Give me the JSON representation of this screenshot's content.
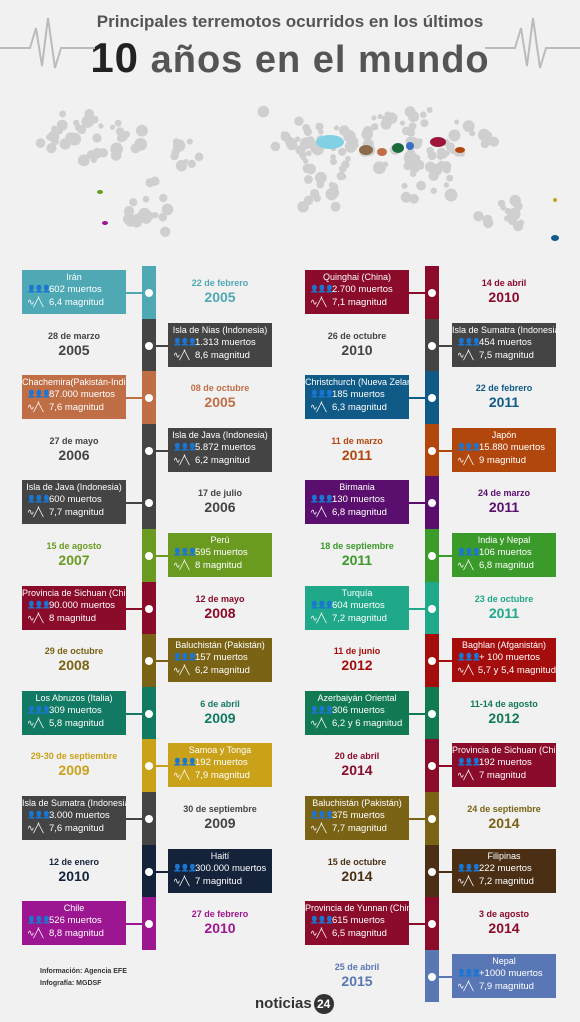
{
  "header": {
    "line1": "Principales terremotos ocurridos en los últimos",
    "num": "10",
    "line2": "años en el mundo"
  },
  "entries_left": [
    {
      "place": "Irán",
      "deaths": "602 muertos",
      "mag": "6,4 magnitud",
      "day": "22 de febrero",
      "year": "2005",
      "color": "#4fa9b5"
    },
    {
      "place": "Isla de Nias (Indonesia)",
      "deaths": "1.313 muertos",
      "mag": "8,6 magnitud",
      "day": "28 de marzo",
      "year": "2005",
      "color": "#444444"
    },
    {
      "place": "Chachemira(Pakistán-India)",
      "deaths": "87.000 muertos",
      "mag": "7,6 magnitud",
      "day": "08 de octubre",
      "year": "2005",
      "color": "#c06e46"
    },
    {
      "place": "Isla de Java (Indonesia)",
      "deaths": "5.872 muertos",
      "mag": "6,2 magnitud",
      "day": "27 de mayo",
      "year": "2006",
      "color": "#444444"
    },
    {
      "place": "Isla de Java (Indonesia)",
      "deaths": "600 muertos",
      "mag": "7,7 magnitud",
      "day": "17 de julio",
      "year": "2006",
      "color": "#444444"
    },
    {
      "place": "Perú",
      "deaths": "595 muertos",
      "mag": "8 magnitud",
      "day": "15 de agosto",
      "year": "2007",
      "color": "#6a9a1f"
    },
    {
      "place": "Provincia de Sichuan (China)",
      "deaths": "90.000 muertos",
      "mag": "8 magnitud",
      "day": "12 de mayo",
      "year": "2008",
      "color": "#8a0b2a"
    },
    {
      "place": "Baluchistán (Pakistán)",
      "deaths": "157 muertos",
      "mag": "6,2 magnitud",
      "day": "29 de octubre",
      "year": "2008",
      "color": "#7a6314"
    },
    {
      "place": "Los Abruzos (Italia)",
      "deaths": "309 muertos",
      "mag": "5,8 magnitud",
      "day": "6 de abril",
      "year": "2009",
      "color": "#127a63"
    },
    {
      "place": "Samoa y Tonga",
      "deaths": "192 muertos",
      "mag": "7,9 magnitud",
      "day": "29-30 de septiembre",
      "year": "2009",
      "color": "#c9a21a"
    },
    {
      "place": "Isla de Sumatra (Indonesia)",
      "deaths": "3.000 muertos",
      "mag": "7,6 magnitud",
      "day": "30 de septiembre",
      "year": "2009",
      "color": "#444444"
    },
    {
      "place": "Haití",
      "deaths": "300.000 muertos",
      "mag": "7 magnitud",
      "day": "12 de enero",
      "year": "2010",
      "color": "#14223a"
    },
    {
      "place": "Chile",
      "deaths": "526 muertos",
      "mag": "8,8 magnitud",
      "day": "27 de febrero",
      "year": "2010",
      "color": "#9b1690"
    }
  ],
  "entries_right": [
    {
      "place": "Quinghai (China)",
      "deaths": "2.700 muertos",
      "mag": "7,1 magnitud",
      "day": "14 de abril",
      "year": "2010",
      "color": "#8a0b2a"
    },
    {
      "place": "Isla de Sumatra (Indonesia)",
      "deaths": "454 muertos",
      "mag": "7,5 magnitud",
      "day": "26 de octubre",
      "year": "2010",
      "color": "#444444"
    },
    {
      "place": "Christchurch (Nueva Zelanda)",
      "deaths": "185 muertos",
      "mag": "6,3 magnitud",
      "day": "22 de febrero",
      "year": "2011",
      "color": "#0f5a86"
    },
    {
      "place": "Japón",
      "deaths": "15.880 muertos",
      "mag": "9 magnitud",
      "day": "11 de marzo",
      "year": "2011",
      "color": "#b2470e"
    },
    {
      "place": "Birmania",
      "deaths": "130 muertos",
      "mag": "6,8 magnitud",
      "day": "24 de marzo",
      "year": "2011",
      "color": "#5a0f6e"
    },
    {
      "place": "India y Nepal",
      "deaths": "106 muertos",
      "mag": "6,8 magnitud",
      "day": "18 de septiembre",
      "year": "2011",
      "color": "#3a9a2a"
    },
    {
      "place": "Turquía",
      "deaths": "604 muertos",
      "mag": "7,2 magnitud",
      "day": "23 de octubre",
      "year": "2011",
      "color": "#1fa88a"
    },
    {
      "place": "Baghlan (Afganistán)",
      "deaths": "+ 100 muertos",
      "mag": "5,7 y 5,4 magnitud",
      "day": "11 de junio",
      "year": "2012",
      "color": "#a50d0d"
    },
    {
      "place": "Azerbaiyán Oriental",
      "deaths": "306 muertos",
      "mag": "6,2 y 6 magnitud",
      "day": "11-14 de agosto",
      "year": "2012",
      "color": "#127a52"
    },
    {
      "place": "Provincia de Sichuan (China)",
      "deaths": "192 muertos",
      "mag": "7 magnitud",
      "day": "20 de abril",
      "year": "2014",
      "color": "#8a0b2a"
    },
    {
      "place": "Baluchistán (Pakistán)",
      "deaths": "375 muertos",
      "mag": "7,7 magnitud",
      "day": "24 de septiembre",
      "year": "2014",
      "color": "#7a6314"
    },
    {
      "place": "Filipinas",
      "deaths": "222 muertos",
      "mag": "7,2 magnitud",
      "day": "15 de octubre",
      "year": "2014",
      "color": "#4a2f14"
    },
    {
      "place": "Provincia de Yunnan (China)",
      "deaths": "615 muertos",
      "mag": "6,5 magnitud",
      "day": "3 de agosto",
      "year": "2014",
      "color": "#8a0b2a"
    },
    {
      "place": "Nepal",
      "deaths": "+1000 muertos",
      "mag": "7,9 magnitud",
      "day": "25 de abril",
      "year": "2015",
      "color": "#5a77b5"
    }
  ],
  "footer": {
    "info": "Información: Agencia EFE",
    "info2": "Infografía: MGDSF",
    "logo": "noticias",
    "logo_num": "24"
  }
}
